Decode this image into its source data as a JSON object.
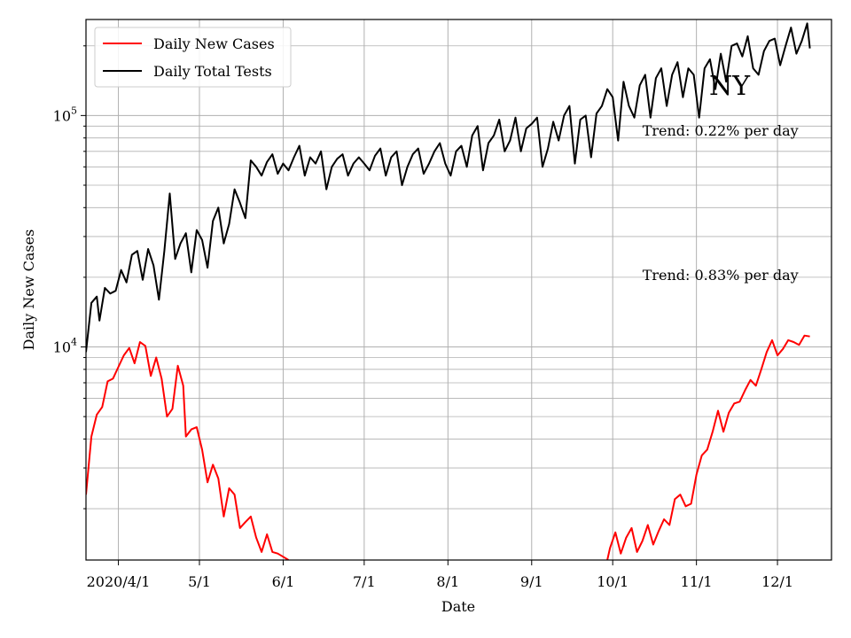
{
  "chart_data": {
    "type": "line",
    "state_label": "NY",
    "xlabel": "Date",
    "ylabel": "Daily New Cases",
    "yscale": "log",
    "ylim": [
      1200,
      260000
    ],
    "xlim": [
      "2020-03-20",
      "2020-12-21"
    ],
    "grid": true,
    "legend_position": "top-left",
    "x_ticks": [
      {
        "date": "2020-04-01",
        "label": "2020/4/1"
      },
      {
        "date": "2020-05-01",
        "label": "5/1"
      },
      {
        "date": "2020-06-01",
        "label": "6/1"
      },
      {
        "date": "2020-07-01",
        "label": "7/1"
      },
      {
        "date": "2020-08-01",
        "label": "8/1"
      },
      {
        "date": "2020-09-01",
        "label": "9/1"
      },
      {
        "date": "2020-10-01",
        "label": "10/1"
      },
      {
        "date": "2020-11-01",
        "label": "11/1"
      },
      {
        "date": "2020-12-01",
        "label": "12/1"
      }
    ],
    "y_ticks": [
      {
        "value": 10000,
        "base": "10",
        "exp": "4"
      },
      {
        "value": 100000,
        "base": "10",
        "exp": "5"
      }
    ],
    "series": [
      {
        "name": "Daily New Cases",
        "color": "#ff0000",
        "points": [
          [
            "2020-03-20",
            2300
          ],
          [
            "2020-03-22",
            4100
          ],
          [
            "2020-03-24",
            5100
          ],
          [
            "2020-03-26",
            5500
          ],
          [
            "2020-03-28",
            7100
          ],
          [
            "2020-03-30",
            7300
          ],
          [
            "2020-04-01",
            8200
          ],
          [
            "2020-04-03",
            9200
          ],
          [
            "2020-04-05",
            9900
          ],
          [
            "2020-04-07",
            8500
          ],
          [
            "2020-04-09",
            10500
          ],
          [
            "2020-04-11",
            10100
          ],
          [
            "2020-04-13",
            7500
          ],
          [
            "2020-04-15",
            9000
          ],
          [
            "2020-04-17",
            7300
          ],
          [
            "2020-04-19",
            5000
          ],
          [
            "2020-04-21",
            5400
          ],
          [
            "2020-04-23",
            8300
          ],
          [
            "2020-04-25",
            6800
          ],
          [
            "2020-04-26",
            4100
          ],
          [
            "2020-04-28",
            4400
          ],
          [
            "2020-04-30",
            4500
          ],
          [
            "2020-05-02",
            3600
          ],
          [
            "2020-05-04",
            2600
          ],
          [
            "2020-05-06",
            3100
          ],
          [
            "2020-05-08",
            2700
          ],
          [
            "2020-05-10",
            1850
          ],
          [
            "2020-05-12",
            2450
          ],
          [
            "2020-05-14",
            2300
          ],
          [
            "2020-05-16",
            1650
          ],
          [
            "2020-05-18",
            1750
          ],
          [
            "2020-05-20",
            1850
          ],
          [
            "2020-05-22",
            1500
          ],
          [
            "2020-05-24",
            1300
          ],
          [
            "2020-05-26",
            1550
          ],
          [
            "2020-05-28",
            1300
          ],
          [
            "2020-05-30",
            1280
          ],
          [
            "2020-06-01",
            1240
          ],
          [
            "2020-06-03",
            1200
          ],
          null,
          [
            "2020-09-29",
            1200
          ],
          [
            "2020-09-30",
            1350
          ],
          [
            "2020-10-02",
            1580
          ],
          [
            "2020-10-04",
            1280
          ],
          [
            "2020-10-06",
            1500
          ],
          [
            "2020-10-08",
            1650
          ],
          [
            "2020-10-10",
            1300
          ],
          [
            "2020-10-12",
            1450
          ],
          [
            "2020-10-14",
            1700
          ],
          [
            "2020-10-16",
            1400
          ],
          [
            "2020-10-18",
            1600
          ],
          [
            "2020-10-20",
            1800
          ],
          [
            "2020-10-22",
            1700
          ],
          [
            "2020-10-24",
            2200
          ],
          [
            "2020-10-26",
            2300
          ],
          [
            "2020-10-28",
            2050
          ],
          [
            "2020-10-30",
            2100
          ],
          [
            "2020-11-01",
            2800
          ],
          [
            "2020-11-03",
            3400
          ],
          [
            "2020-11-05",
            3600
          ],
          [
            "2020-11-07",
            4300
          ],
          [
            "2020-11-09",
            5300
          ],
          [
            "2020-11-11",
            4300
          ],
          [
            "2020-11-13",
            5200
          ],
          [
            "2020-11-15",
            5700
          ],
          [
            "2020-11-17",
            5800
          ],
          [
            "2020-11-19",
            6500
          ],
          [
            "2020-11-21",
            7200
          ],
          [
            "2020-11-23",
            6800
          ],
          [
            "2020-11-25",
            8000
          ],
          [
            "2020-11-27",
            9500
          ],
          [
            "2020-11-29",
            10700
          ],
          [
            "2020-12-01",
            9200
          ],
          [
            "2020-12-03",
            9800
          ],
          [
            "2020-12-05",
            10700
          ],
          [
            "2020-12-07",
            10500
          ],
          [
            "2020-12-09",
            10200
          ],
          [
            "2020-12-11",
            11200
          ],
          [
            "2020-12-13",
            11100
          ]
        ]
      },
      {
        "name": "Daily Total Tests",
        "color": "#000000",
        "points": [
          [
            "2020-03-20",
            9500
          ],
          [
            "2020-03-22",
            15500
          ],
          [
            "2020-03-24",
            16500
          ],
          [
            "2020-03-25",
            13000
          ],
          [
            "2020-03-27",
            18000
          ],
          [
            "2020-03-29",
            17000
          ],
          [
            "2020-03-31",
            17500
          ],
          [
            "2020-04-02",
            21500
          ],
          [
            "2020-04-04",
            19000
          ],
          [
            "2020-04-06",
            25000
          ],
          [
            "2020-04-08",
            26000
          ],
          [
            "2020-04-10",
            19500
          ],
          [
            "2020-04-12",
            26500
          ],
          [
            "2020-04-14",
            22500
          ],
          [
            "2020-04-16",
            16000
          ],
          [
            "2020-04-18",
            26000
          ],
          [
            "2020-04-20",
            46000
          ],
          [
            "2020-04-22",
            24000
          ],
          [
            "2020-04-24",
            28000
          ],
          [
            "2020-04-26",
            31000
          ],
          [
            "2020-04-28",
            21000
          ],
          [
            "2020-04-30",
            32000
          ],
          [
            "2020-05-02",
            29000
          ],
          [
            "2020-05-04",
            22000
          ],
          [
            "2020-05-06",
            35000
          ],
          [
            "2020-05-08",
            40000
          ],
          [
            "2020-05-10",
            28000
          ],
          [
            "2020-05-12",
            34000
          ],
          [
            "2020-05-14",
            48000
          ],
          [
            "2020-05-16",
            42000
          ],
          [
            "2020-05-18",
            36000
          ],
          [
            "2020-05-20",
            64000
          ],
          [
            "2020-05-22",
            60000
          ],
          [
            "2020-05-24",
            55000
          ],
          [
            "2020-05-26",
            63000
          ],
          [
            "2020-05-28",
            68000
          ],
          [
            "2020-05-30",
            56000
          ],
          [
            "2020-06-01",
            62000
          ],
          [
            "2020-06-03",
            58000
          ],
          [
            "2020-06-05",
            66000
          ],
          [
            "2020-06-07",
            74000
          ],
          [
            "2020-06-09",
            55000
          ],
          [
            "2020-06-11",
            66000
          ],
          [
            "2020-06-13",
            62000
          ],
          [
            "2020-06-15",
            70000
          ],
          [
            "2020-06-17",
            48000
          ],
          [
            "2020-06-19",
            60000
          ],
          [
            "2020-06-21",
            65000
          ],
          [
            "2020-06-23",
            68000
          ],
          [
            "2020-06-25",
            55000
          ],
          [
            "2020-06-27",
            62000
          ],
          [
            "2020-06-29",
            66000
          ],
          [
            "2020-07-01",
            62000
          ],
          [
            "2020-07-03",
            58000
          ],
          [
            "2020-07-05",
            67000
          ],
          [
            "2020-07-07",
            72000
          ],
          [
            "2020-07-09",
            55000
          ],
          [
            "2020-07-11",
            66000
          ],
          [
            "2020-07-13",
            70000
          ],
          [
            "2020-07-15",
            50000
          ],
          [
            "2020-07-17",
            60000
          ],
          [
            "2020-07-19",
            68000
          ],
          [
            "2020-07-21",
            72000
          ],
          [
            "2020-07-23",
            56000
          ],
          [
            "2020-07-25",
            62000
          ],
          [
            "2020-07-27",
            70000
          ],
          [
            "2020-07-29",
            76000
          ],
          [
            "2020-07-31",
            62000
          ],
          [
            "2020-08-02",
            55000
          ],
          [
            "2020-08-04",
            70000
          ],
          [
            "2020-08-06",
            74000
          ],
          [
            "2020-08-08",
            60000
          ],
          [
            "2020-08-10",
            82000
          ],
          [
            "2020-08-12",
            90000
          ],
          [
            "2020-08-14",
            58000
          ],
          [
            "2020-08-16",
            76000
          ],
          [
            "2020-08-18",
            82000
          ],
          [
            "2020-08-20",
            96000
          ],
          [
            "2020-08-22",
            70000
          ],
          [
            "2020-08-24",
            78000
          ],
          [
            "2020-08-26",
            98000
          ],
          [
            "2020-08-28",
            70000
          ],
          [
            "2020-08-30",
            88000
          ],
          [
            "2020-09-01",
            92000
          ],
          [
            "2020-09-03",
            98000
          ],
          [
            "2020-09-05",
            60000
          ],
          [
            "2020-09-07",
            72000
          ],
          [
            "2020-09-09",
            94000
          ],
          [
            "2020-09-11",
            78000
          ],
          [
            "2020-09-13",
            100000
          ],
          [
            "2020-09-15",
            110000
          ],
          [
            "2020-09-17",
            62000
          ],
          [
            "2020-09-19",
            96000
          ],
          [
            "2020-09-21",
            100000
          ],
          [
            "2020-09-23",
            66000
          ],
          [
            "2020-09-25",
            102000
          ],
          [
            "2020-09-27",
            110000
          ],
          [
            "2020-09-29",
            130000
          ],
          [
            "2020-10-01",
            120000
          ],
          [
            "2020-10-03",
            78000
          ],
          [
            "2020-10-05",
            140000
          ],
          [
            "2020-10-07",
            110000
          ],
          [
            "2020-10-09",
            98000
          ],
          [
            "2020-10-11",
            135000
          ],
          [
            "2020-10-13",
            150000
          ],
          [
            "2020-10-15",
            98000
          ],
          [
            "2020-10-17",
            145000
          ],
          [
            "2020-10-19",
            160000
          ],
          [
            "2020-10-21",
            110000
          ],
          [
            "2020-10-23",
            150000
          ],
          [
            "2020-10-25",
            170000
          ],
          [
            "2020-10-27",
            120000
          ],
          [
            "2020-10-29",
            160000
          ],
          [
            "2020-10-31",
            150000
          ],
          [
            "2020-11-02",
            98000
          ],
          [
            "2020-11-04",
            160000
          ],
          [
            "2020-11-06",
            175000
          ],
          [
            "2020-11-08",
            130000
          ],
          [
            "2020-11-10",
            185000
          ],
          [
            "2020-11-12",
            140000
          ],
          [
            "2020-11-14",
            200000
          ],
          [
            "2020-11-16",
            205000
          ],
          [
            "2020-11-18",
            180000
          ],
          [
            "2020-11-20",
            220000
          ],
          [
            "2020-11-22",
            160000
          ],
          [
            "2020-11-24",
            150000
          ],
          [
            "2020-11-26",
            190000
          ],
          [
            "2020-11-28",
            210000
          ],
          [
            "2020-11-30",
            215000
          ],
          [
            "2020-12-02",
            165000
          ],
          [
            "2020-12-04",
            200000
          ],
          [
            "2020-12-06",
            240000
          ],
          [
            "2020-12-08",
            185000
          ],
          [
            "2020-12-10",
            210000
          ],
          [
            "2020-12-12",
            250000
          ],
          [
            "2020-12-13",
            195000
          ]
        ]
      }
    ],
    "annotations": [
      {
        "text": "Trend: 0.22% per day",
        "date": "2020-10-12",
        "value": 82000
      },
      {
        "text": "Trend: 0.83% per day",
        "date": "2020-10-12",
        "value": 19500
      }
    ]
  }
}
